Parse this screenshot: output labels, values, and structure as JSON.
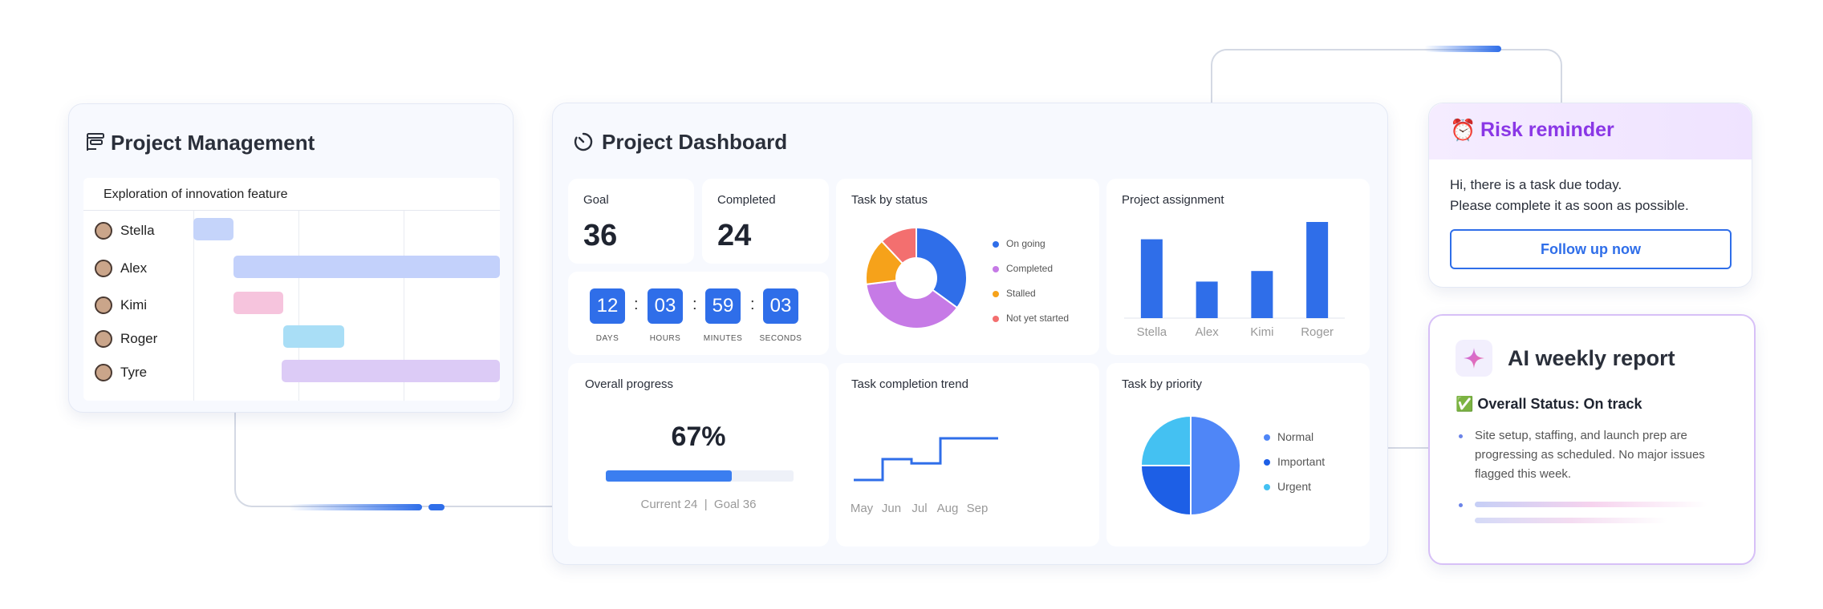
{
  "project_management": {
    "title": "Project Management",
    "gantt_header": "Exploration of innovation feature",
    "rows": [
      {
        "name": "Stella",
        "color": "#c5d4fa"
      },
      {
        "name": "Alex",
        "color": "#c3d1fb"
      },
      {
        "name": "Kimi",
        "color": "#f6c4dd"
      },
      {
        "name": "Roger",
        "color": "#a9def6"
      },
      {
        "name": "Tyre",
        "color": "#dccbf6"
      }
    ]
  },
  "dashboard": {
    "title": "Project Dashboard",
    "goal_label": "Goal",
    "goal_value": "36",
    "completed_label": "Completed",
    "completed_value": "24",
    "countdown": [
      {
        "value": "12",
        "label": "DAYS"
      },
      {
        "value": "03",
        "label": "HOURS"
      },
      {
        "value": "59",
        "label": "MINUTES"
      },
      {
        "value": "03",
        "label": "SECONDS"
      }
    ],
    "countdown_separator": ":",
    "task_by_status_label": "Task by status",
    "project_assignment_label": "Project assignment",
    "overall_progress_label": "Overall progress",
    "overall_progress_value": "67%",
    "overall_progress_fraction": 0.67,
    "progress_caption": "Current 24  |  Goal 36",
    "task_completion_trend_label": "Task completion trend",
    "task_by_priority_label": "Task by priority",
    "accent_color": "#2f6ee9"
  },
  "risk_reminder": {
    "title": "Risk reminder",
    "line1": "Hi, there is a task due today.",
    "line2": "Please complete it as soon as possible.",
    "button": "Follow up now",
    "icon": "alarm-clock-icon"
  },
  "ai_report": {
    "title": "AI weekly report",
    "status": "✅ Overall Status: On track",
    "bullet": "Site setup, staffing, and launch prep are progressing as scheduled. No major issues flagged this week."
  },
  "chart_data": [
    {
      "type": "pie",
      "title": "Task by status",
      "categories": [
        "On going",
        "Completed",
        "Stalled",
        "Not yet started"
      ],
      "values": [
        35,
        38,
        15,
        12
      ],
      "colors": [
        "#2f6ee9",
        "#c67ae6",
        "#f6a21a",
        "#f36f6f"
      ],
      "donut": true,
      "legend": "right"
    },
    {
      "type": "bar",
      "title": "Project assignment",
      "categories": [
        "Stella",
        "Alex",
        "Kimi",
        "Roger"
      ],
      "values": [
        82,
        38,
        49,
        100
      ],
      "ylim": [
        0,
        100
      ],
      "color": "#2f6ee9",
      "grid": false
    },
    {
      "type": "line",
      "title": "Task completion trend",
      "categories": [
        "May",
        "Jun",
        "Jul",
        "Aug",
        "Sep"
      ],
      "x": [
        0,
        1,
        1,
        2,
        2,
        3,
        3,
        4,
        4,
        5
      ],
      "y": [
        0,
        0,
        2,
        2,
        1.6,
        1.6,
        4,
        4,
        4,
        4
      ],
      "step": true,
      "color": "#2f6ee9",
      "grid": false
    },
    {
      "type": "pie",
      "title": "Task by priority",
      "categories": [
        "Normal",
        "Important",
        "Urgent"
      ],
      "values": [
        50,
        25,
        25
      ],
      "colors": [
        "#4f86f7",
        "#1d5fe6",
        "#44c1f2"
      ],
      "donut": false,
      "legend": "right"
    }
  ]
}
